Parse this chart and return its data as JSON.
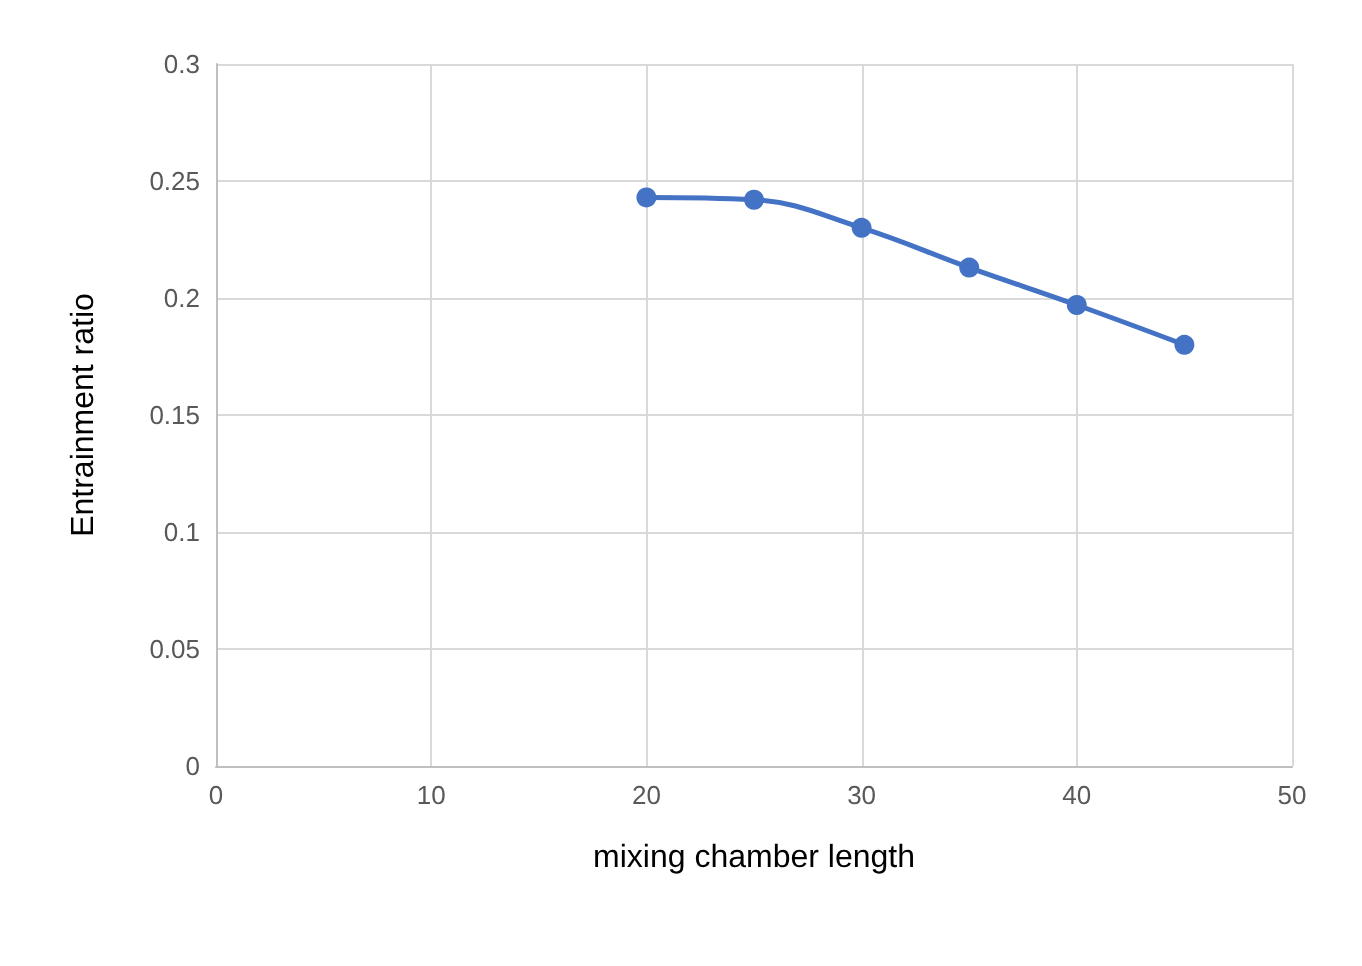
{
  "chart_data": {
    "type": "line",
    "xlabel": "mixing chamber length",
    "ylabel": "Entrainment ratio",
    "x": [
      20,
      25,
      30,
      35,
      40,
      45
    ],
    "series": [
      {
        "color": "#4472c4",
        "values": [
          0.243,
          0.242,
          0.23,
          0.213,
          0.197,
          0.18
        ]
      }
    ],
    "xlim": [
      0,
      50
    ],
    "xticks": [
      0,
      10,
      20,
      30,
      40,
      50
    ],
    "ylim": [
      0,
      0.3
    ],
    "yticks": [
      0,
      0.05,
      0.1,
      0.15,
      0.2,
      0.25,
      0.3
    ],
    "grid": true,
    "marker": "circle",
    "line_style": "solid"
  }
}
